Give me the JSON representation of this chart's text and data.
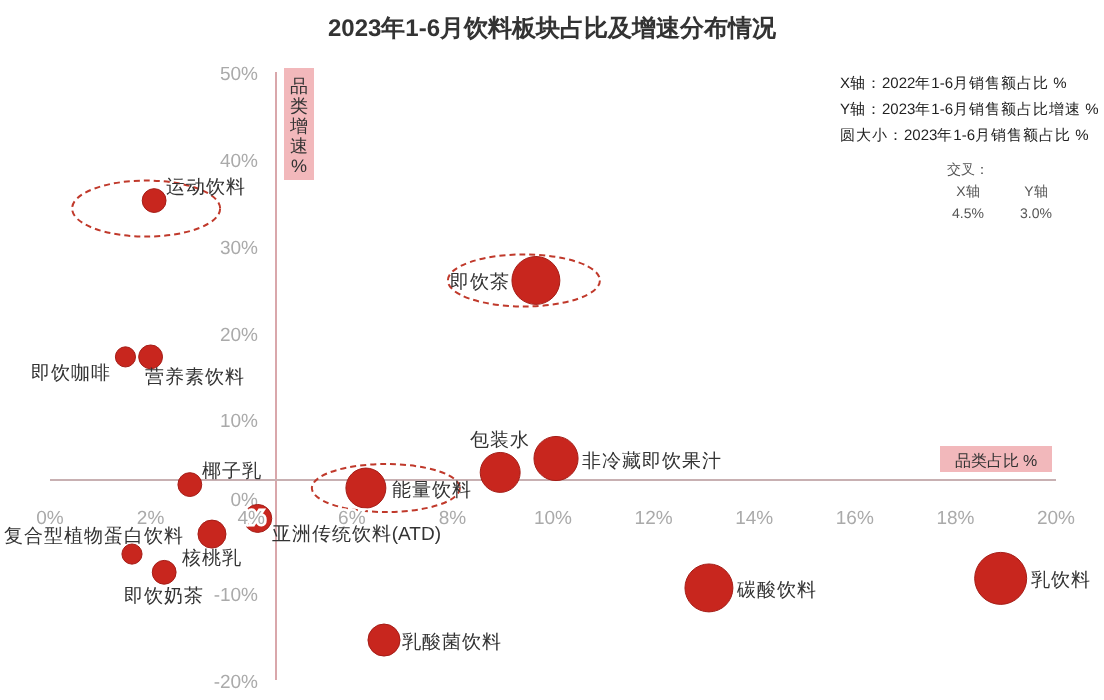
{
  "chart_data": {
    "type": "bubble",
    "title": "2023年1-6月饮料板块占比及增速分布情况",
    "xlabel": "品类占比 %",
    "ylabel": "品类增速 %",
    "xlim": [
      0,
      20
    ],
    "ylim": [
      -20,
      50
    ],
    "xticks": [
      {
        "value": 0,
        "label": "0%"
      },
      {
        "value": 2,
        "label": "2%"
      },
      {
        "value": 4,
        "label": "4%"
      },
      {
        "value": 6,
        "label": "6%"
      },
      {
        "value": 8,
        "label": "8%"
      },
      {
        "value": 10,
        "label": "10%"
      },
      {
        "value": 12,
        "label": "12%"
      },
      {
        "value": 14,
        "label": "14%"
      },
      {
        "value": 16,
        "label": "16%"
      },
      {
        "value": 18,
        "label": "18%"
      },
      {
        "value": 20,
        "label": "20%"
      }
    ],
    "yticks": [
      {
        "value": -20,
        "label": "-20%"
      },
      {
        "value": -10,
        "label": "-10%"
      },
      {
        "value": 0,
        "label": "0%"
      },
      {
        "value": 10,
        "label": "10%"
      },
      {
        "value": 20,
        "label": "20%"
      },
      {
        "value": 30,
        "label": "30%"
      },
      {
        "value": 40,
        "label": "40%"
      },
      {
        "value": 50,
        "label": "50%"
      }
    ],
    "grid": false,
    "series": [
      {
        "name": "运动饮料",
        "color": "#c8261e",
        "x": [
          2.07
        ],
        "values": [
          35.2
        ],
        "sizes": [
          0.21
        ]
      },
      {
        "name": "即饮茶",
        "color": "#c8261e",
        "x": [
          9.66
        ],
        "values": [
          26.0
        ],
        "sizes": [
          0.85
        ]
      },
      {
        "name": "即饮咖啡",
        "color": "#c8261e",
        "x": [
          1.5
        ],
        "values": [
          17.2
        ],
        "sizes": [
          0.15
        ]
      },
      {
        "name": "营养素饮料",
        "color": "#c8261e",
        "x": [
          2.0
        ],
        "values": [
          17.2
        ],
        "sizes": [
          0.21
        ]
      },
      {
        "name": "包装水",
        "color": "#c8261e",
        "x": [
          8.95
        ],
        "values": [
          3.9
        ],
        "sizes": [
          0.59
        ]
      },
      {
        "name": "非冷藏即饮果汁",
        "color": "#c8261e",
        "x": [
          10.06
        ],
        "values": [
          5.5
        ],
        "sizes": [
          0.72
        ]
      },
      {
        "name": "能量饮料",
        "color": "#c8261e",
        "x": [
          6.28
        ],
        "values": [
          2.1
        ],
        "sizes": [
          0.59
        ]
      },
      {
        "name": "椰子乳",
        "color": "#c8261e",
        "x": [
          2.78
        ],
        "values": [
          2.5
        ],
        "sizes": [
          0.21
        ]
      },
      {
        "name": "亚洲传统饮料(ATD)",
        "color": "#c8261e",
        "x": [
          4.13
        ],
        "values": [
          -1.4
        ],
        "sizes": [
          0.29
        ]
      },
      {
        "name": "核桃乳",
        "color": "#c8261e",
        "x": [
          3.22
        ],
        "values": [
          -3.2
        ],
        "sizes": [
          0.29
        ]
      },
      {
        "name": "复合型植物蛋白饮料",
        "color": "#c8261e",
        "x": [
          1.63
        ],
        "values": [
          -5.5
        ],
        "sizes": [
          0.15
        ]
      },
      {
        "name": "即饮奶茶",
        "color": "#c8261e",
        "x": [
          2.27
        ],
        "values": [
          -7.6
        ],
        "sizes": [
          0.21
        ]
      },
      {
        "name": "乳酸菌饮料",
        "color": "#c8261e",
        "x": [
          6.64
        ],
        "values": [
          -15.4
        ],
        "sizes": [
          0.38
        ]
      },
      {
        "name": "碳酸饮料",
        "color": "#c8261e",
        "x": [
          13.1
        ],
        "values": [
          -9.4
        ],
        "sizes": [
          0.85
        ]
      },
      {
        "name": "乳饮料",
        "color": "#c8261e",
        "x": [
          18.9
        ],
        "values": [
          -8.3
        ],
        "sizes": [
          1
        ]
      }
    ],
    "annotations": [
      "X轴：2022年1-6月销售额占比 %",
      "Y轴：2023年1-6月销售额占比增速 %",
      "圆大小：2023年1-6月销售额占比 %",
      "交叉：",
      "X轴",
      "Y轴",
      "4.5%",
      "3.0%"
    ]
  }
}
